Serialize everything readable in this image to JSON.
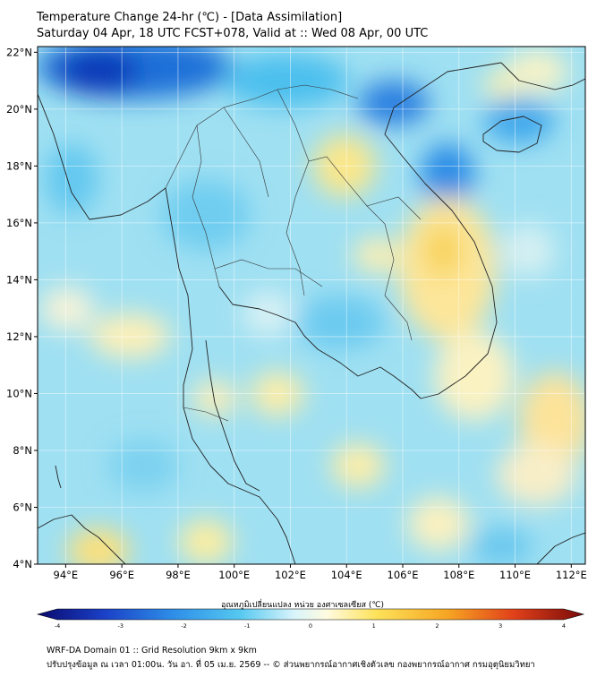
{
  "title_line1": "Temperature Change 24-hr (℃) - [Data Assimilation]",
  "title_line2": "Saturday 04 Apr, 18 UTC FCST+078, Valid at :: Wed 08 Apr, 00 UTC",
  "map": {
    "lon_range": [
      93,
      112.5
    ],
    "lat_range": [
      4,
      22.2
    ],
    "lat_ticks": [
      "4°N",
      "6°N",
      "8°N",
      "10°N",
      "12°N",
      "14°N",
      "16°N",
      "18°N",
      "20°N",
      "22°N"
    ],
    "lon_ticks": [
      "94°E",
      "96°E",
      "98°E",
      "100°E",
      "102°E",
      "104°E",
      "106°E",
      "108°E",
      "110°E",
      "112°E"
    ],
    "grid": true
  },
  "colorbar": {
    "label": "อุณหภูมิเปลี่ยนแปลง หน่วย องศาเซลเซียส (℃)",
    "ticks": [
      "-4",
      "-3",
      "-2",
      "-1",
      "0",
      "1",
      "2",
      "3",
      "4"
    ],
    "range": [
      -4,
      4
    ],
    "colors": [
      "#0a0a6e",
      "#1a3fc6",
      "#2e8fe8",
      "#55c8f0",
      "#b8ecf7",
      "#ffffff",
      "#fdf3b0",
      "#fde25a",
      "#f6a623",
      "#e2421a",
      "#7a0a0a"
    ]
  },
  "footer_line1": "WRF-DA Domain 01 :: Grid Resolution 9km x 9km",
  "footer_line2": "ปรับปรุงข้อมูล ณ เวลา 01:00น. วัน อา. ที่ 05 เม.ย. 2569 -- © ส่วนพยากรณ์อากาศเชิงตัวเลข กองพยากรณ์อากาศ กรมอุตุนิยมวิทยา"
}
